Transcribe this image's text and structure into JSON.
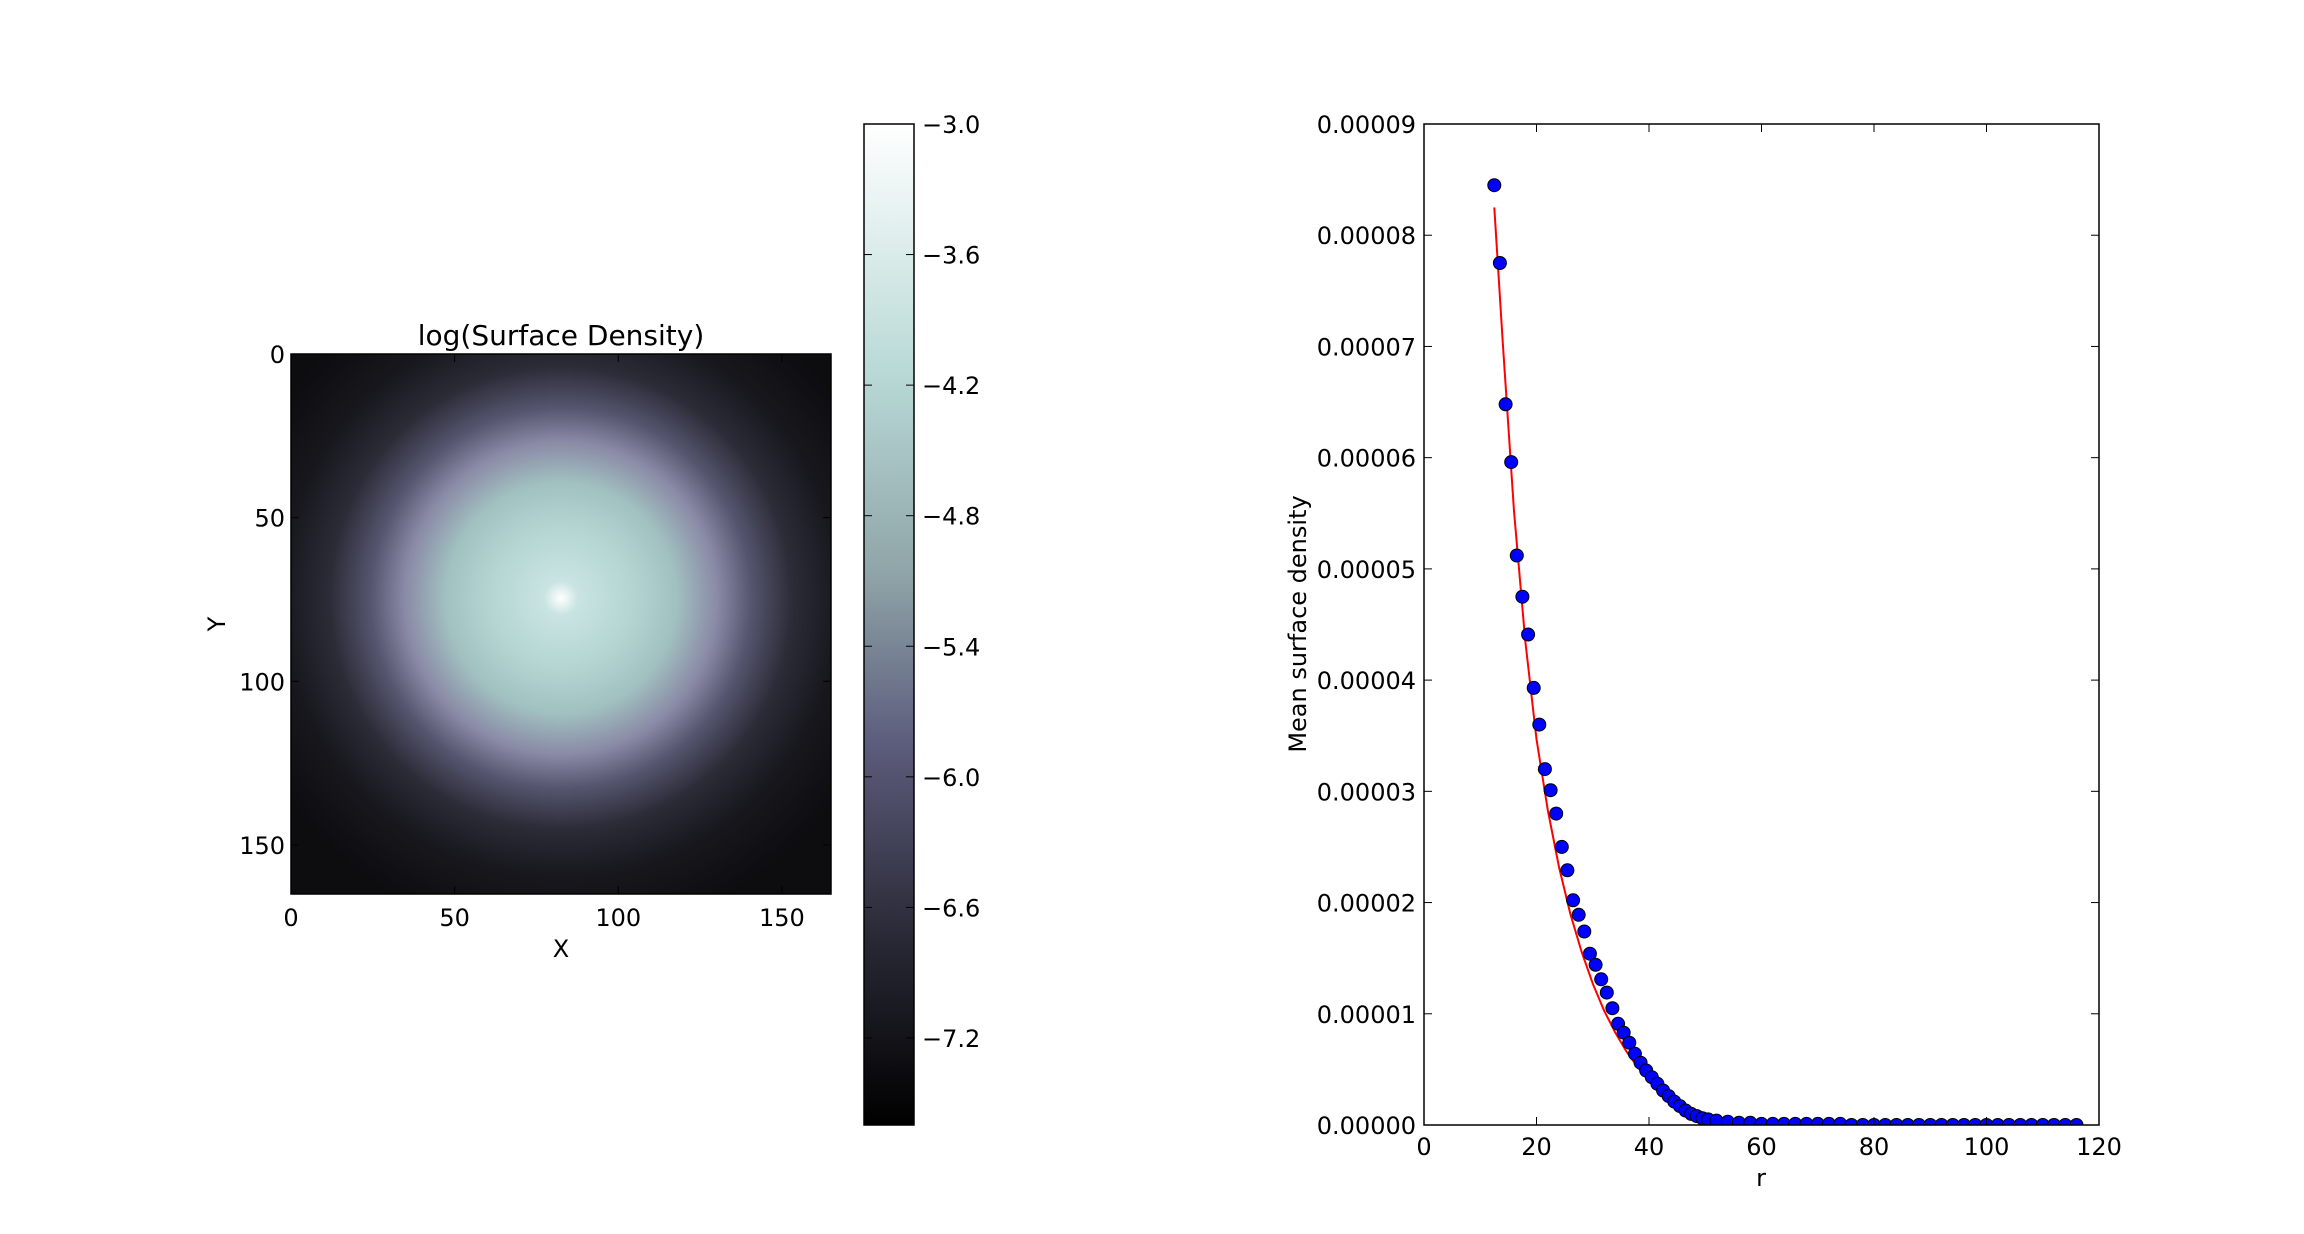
{
  "chart_data": [
    {
      "type": "heatmap",
      "title": "log(Surface Density)",
      "xlabel": "X",
      "ylabel": "Y",
      "xlim": [
        0,
        165
      ],
      "ylim": [
        165,
        0
      ],
      "xticks": [
        "0",
        "50",
        "100",
        "150"
      ],
      "yticks": [
        "0",
        "50",
        "100",
        "150"
      ],
      "center": [
        82,
        76
      ],
      "peak_value": -3.0,
      "colormap": "bone",
      "colorbar": {
        "range": [
          -7.6,
          -3.0
        ],
        "ticks": [
          "−3.0",
          "−3.6",
          "−4.2",
          "−4.8",
          "−5.4",
          "−6.0",
          "−6.6",
          "−7.2"
        ]
      }
    },
    {
      "type": "scatter",
      "xlabel": "r",
      "ylabel": "Mean surface density",
      "xlim": [
        0,
        120
      ],
      "ylim": [
        0,
        9e-05
      ],
      "xticks": [
        "0",
        "20",
        "40",
        "60",
        "80",
        "100",
        "120"
      ],
      "yticks": [
        "0.00000",
        "0.00001",
        "0.00002",
        "0.00003",
        "0.00004",
        "0.00005",
        "0.00006",
        "0.00007",
        "0.00008",
        "0.00009"
      ],
      "series": [
        {
          "marker": "circle",
          "color": "#0000ff",
          "x": [
            12.5,
            13.5,
            14.5,
            15.5,
            16.5,
            17.5,
            18.5,
            19.5,
            20.5,
            21.5,
            22.5,
            23.5,
            24.5,
            25.5,
            26.5,
            27.5,
            28.5,
            29.5,
            30.5,
            31.5,
            32.5,
            33.5,
            34.5,
            35.5,
            36.5,
            37.5,
            38.5,
            39.5,
            40.5,
            41.5,
            42.5,
            43.5,
            44.5,
            45.5,
            46.5,
            47.5,
            48.5,
            49.5,
            50.5,
            52,
            54,
            56,
            58,
            60,
            62,
            64,
            66,
            68,
            70,
            72,
            74,
            76,
            78,
            80,
            82,
            84,
            86,
            88,
            90,
            92,
            94,
            96,
            98,
            100,
            102,
            104,
            106,
            108,
            110,
            112,
            114,
            116
          ],
          "y": [
            8.45e-05,
            7.75e-05,
            6.48e-05,
            5.96e-05,
            5.12e-05,
            4.75e-05,
            4.41e-05,
            3.93e-05,
            3.6e-05,
            3.2e-05,
            3.01e-05,
            2.8e-05,
            2.5e-05,
            2.29e-05,
            2.02e-05,
            1.89e-05,
            1.74e-05,
            1.54e-05,
            1.44e-05,
            1.31e-05,
            1.19e-05,
            1.05e-05,
            9.1e-06,
            8.3e-06,
            7.4e-06,
            6.4e-06,
            5.6e-06,
            4.9e-06,
            4.3e-06,
            3.7e-06,
            3.1e-06,
            2.6e-06,
            2.1e-06,
            1.7e-06,
            1.3e-06,
            1e-06,
            8e-07,
            6e-07,
            5e-07,
            4e-07,
            3e-07,
            2e-07,
            2e-07,
            1e-07,
            1e-07,
            1e-07,
            1e-07,
            1e-07,
            1e-07,
            1e-07,
            1e-07,
            0,
            0,
            0,
            0,
            0,
            0,
            0,
            0,
            0,
            0,
            0,
            0,
            0,
            0,
            0,
            0,
            0,
            0,
            0,
            0,
            0
          ]
        },
        {
          "marker": "line",
          "color": "#ff0000",
          "x": [
            12.5,
            14,
            16,
            18,
            20,
            22,
            24,
            26,
            28,
            30,
            32,
            34,
            36,
            38,
            40,
            42,
            44,
            46,
            48,
            50,
            52,
            54,
            56,
            58,
            60,
            62,
            64,
            66,
            68,
            70,
            75,
            80,
            85,
            90,
            95,
            100,
            105,
            110,
            116
          ],
          "y": [
            8.25e-05,
            7.03e-05,
            5.52e-05,
            4.35e-05,
            3.47e-05,
            2.83e-05,
            2.32e-05,
            1.9e-05,
            1.56e-05,
            1.27e-05,
            1.03e-05,
            8.3e-06,
            6.6e-06,
            5.2e-06,
            4e-06,
            3e-06,
            2.2e-06,
            1.6e-06,
            1.2e-06,
            9e-07,
            7e-07,
            5e-07,
            4e-07,
            3e-07,
            2e-07,
            2e-07,
            1e-07,
            1e-07,
            1e-07,
            1e-07,
            1e-07,
            1e-07,
            1e-07,
            1e-07,
            1e-07,
            1e-07,
            1e-07,
            1e-07,
            1e-07
          ]
        }
      ]
    }
  ]
}
